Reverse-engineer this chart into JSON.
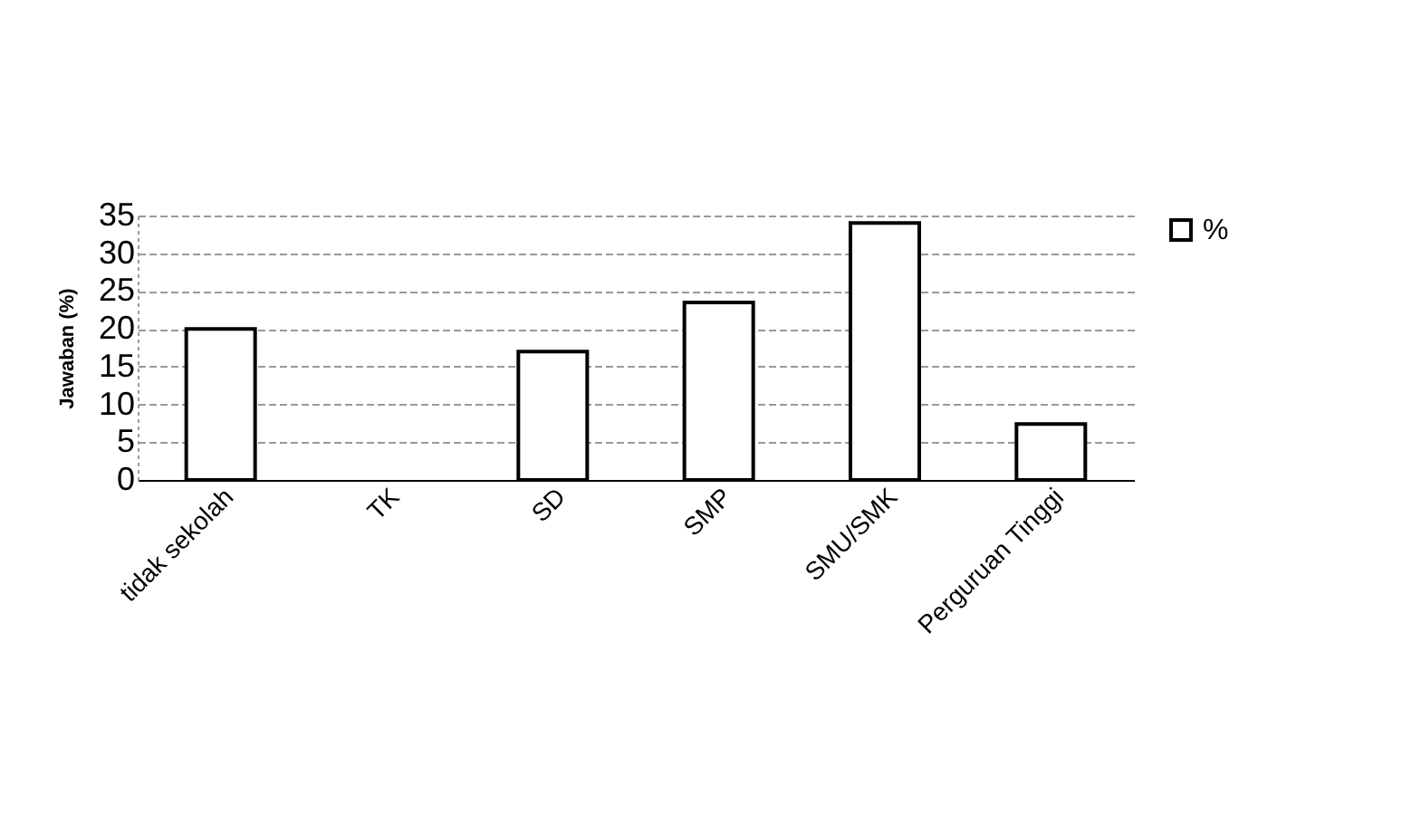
{
  "chart_data": {
    "type": "bar",
    "ylabel": "Jawaban (%)",
    "categories": [
      "tidak sekolah",
      "TK",
      "SD",
      "SMP",
      "SMU/SMK",
      "Perguruan Tinggi"
    ],
    "series": [
      {
        "name": "%",
        "color": "#ffffff",
        "values": [
          20,
          null,
          17,
          23.5,
          34,
          7.4
        ]
      }
    ],
    "ylim": [
      0,
      35
    ],
    "yticks": [
      0,
      5,
      10,
      15,
      20,
      25,
      30,
      35
    ],
    "grid": "y",
    "legend": "right"
  }
}
